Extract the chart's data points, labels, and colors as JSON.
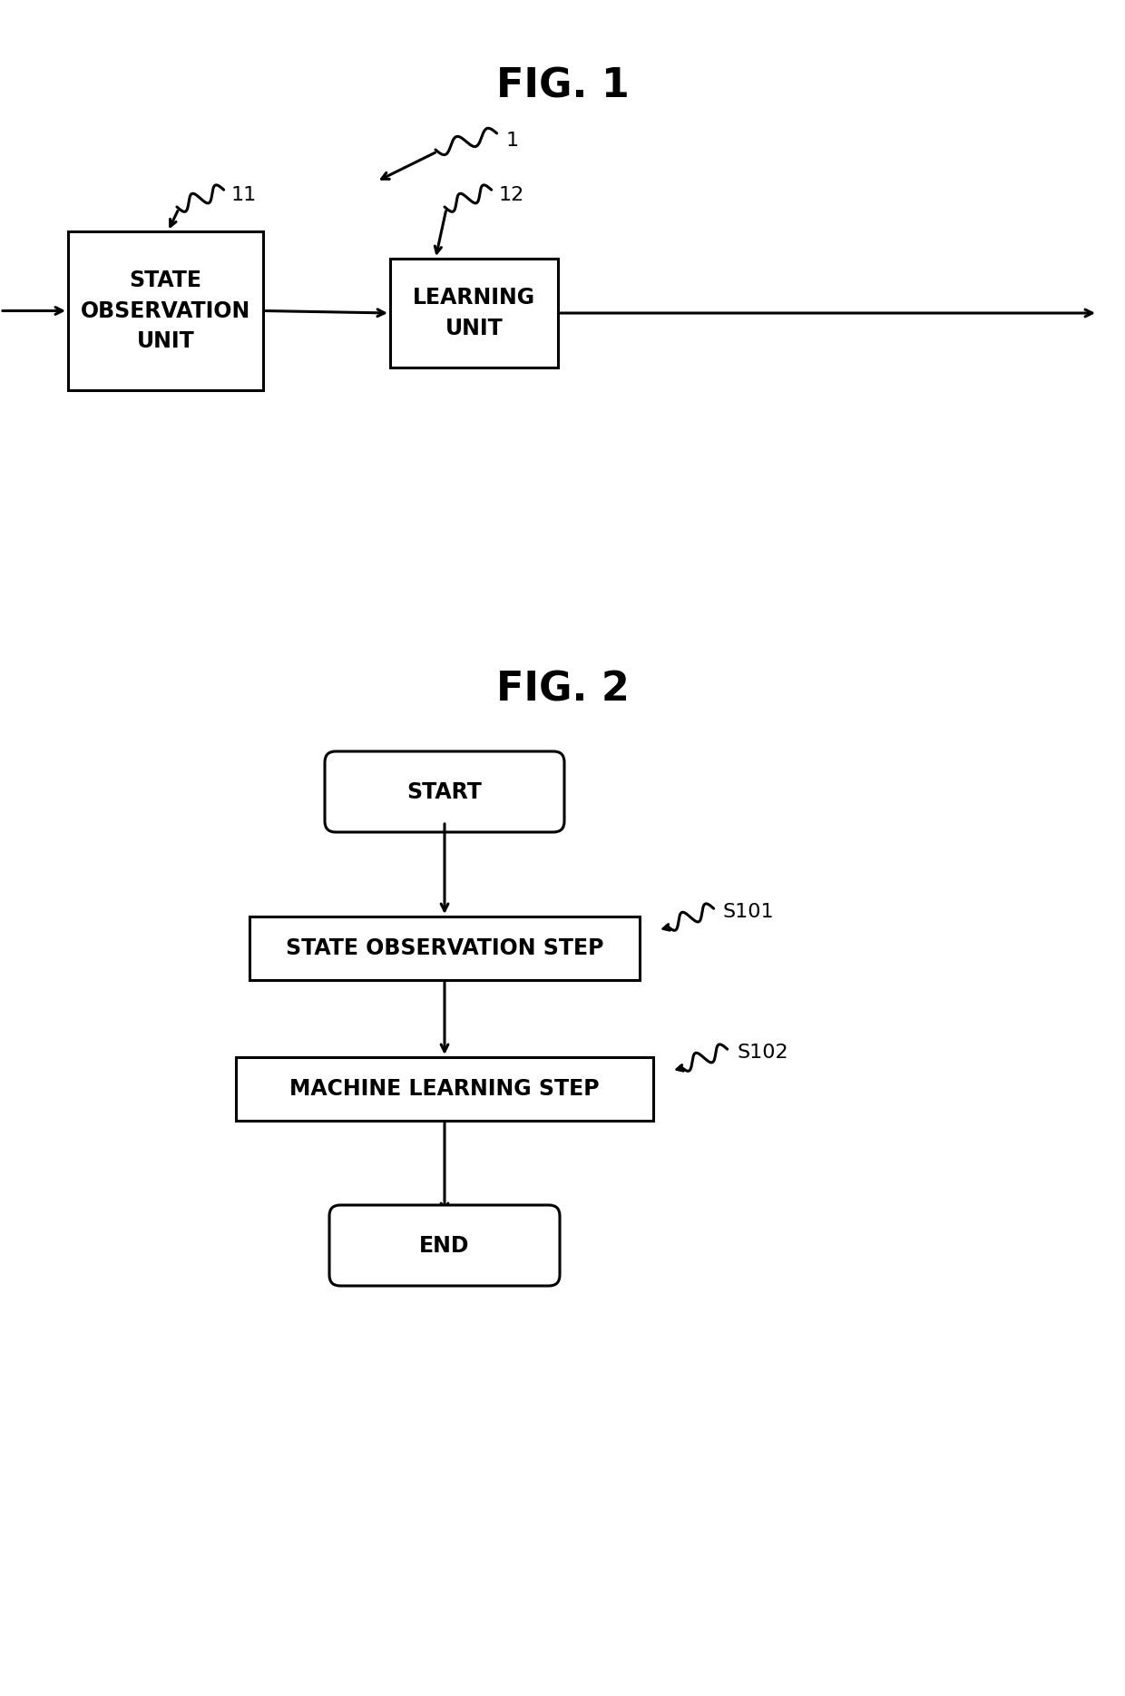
{
  "bg_color": "#ffffff",
  "fig_width": 12.4,
  "fig_height": 18.69,
  "dpi": 100,
  "fig1_title": "FIG. 1",
  "fig2_title": "FIG. 2",
  "box1_label": "STATE\nOBSERVATION\nUNIT",
  "box2_label": "LEARNING\nUNIT",
  "start_label": "START",
  "step1_label": "STATE OBSERVATION STEP",
  "step2_label": "MACHINE LEARNING STEP",
  "end_label": "END",
  "ref1_label": "1",
  "ref11_label": "11",
  "ref12_label": "12",
  "ref_s101": "S101",
  "ref_s102": "S102",
  "font_size_title": 32,
  "font_size_box": 17,
  "font_size_ref": 16,
  "line_color": "#000000",
  "line_width": 2.2
}
